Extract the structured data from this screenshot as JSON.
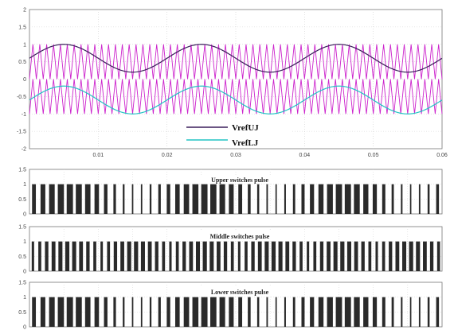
{
  "chart_data": [
    {
      "type": "line",
      "title": "",
      "xlabel": "",
      "ylabel": "",
      "xlim": [
        0,
        0.06
      ],
      "ylim": [
        -2,
        2
      ],
      "x_ticks": [
        "0.01",
        "0.02",
        "0.03",
        "0.04",
        "0.05",
        "0.06"
      ],
      "y_ticks": [
        "2",
        "1.5",
        "1",
        "0.5",
        "0",
        "-0.5",
        "-1",
        "-1.5",
        "-2"
      ],
      "grid": true,
      "legend_position": "bottom-center",
      "carrier": {
        "amplitude": 1,
        "cycles": 60,
        "color": "#cc22cc"
      },
      "series": [
        {
          "name": "VrefUJ",
          "color": "#3a1f5a",
          "offset": 0.6,
          "amplitude": 0.4,
          "frequency_hz": 50
        },
        {
          "name": "VrefLJ",
          "color": "#22c4c4",
          "offset": -0.6,
          "amplitude": 0.4,
          "frequency_hz": 50
        }
      ]
    },
    {
      "type": "line",
      "title": "Upper switches pulse",
      "xlim": [
        0,
        0.06
      ],
      "ylim": [
        0,
        1.5
      ],
      "y_ticks": [
        "1.5",
        "1",
        "0.5",
        "0"
      ],
      "grid": true,
      "pulses": 46
    },
    {
      "type": "line",
      "title": "Middle switches pulse",
      "xlim": [
        0,
        0.06
      ],
      "ylim": [
        0,
        1.5
      ],
      "y_ticks": [
        "1.5",
        "1",
        "0.5",
        "0"
      ],
      "grid": true,
      "pulses": 60
    },
    {
      "type": "line",
      "title": "Lower switches pulse",
      "xlim": [
        0,
        0.06
      ],
      "ylim": [
        0,
        1.5
      ],
      "y_ticks": [
        "1.5",
        "1",
        "0.5",
        "0"
      ],
      "grid": true,
      "pulses": 46
    }
  ]
}
